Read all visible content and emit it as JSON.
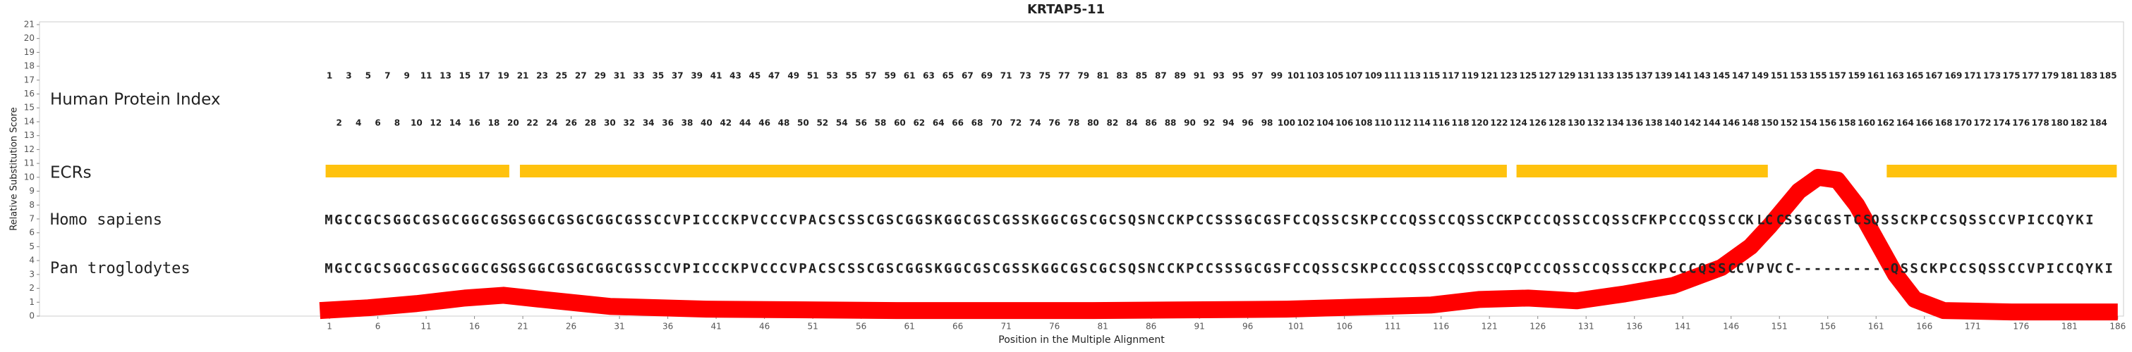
{
  "chart_data": {
    "type": "alignment",
    "title": "KRTAP5-11",
    "ylabel": "Relative Substitution Score",
    "xlabel": "Position in the Multiple Alignment",
    "xlim": [
      -29,
      186.6
    ],
    "ylim": [
      0,
      21.2
    ],
    "yticks": [
      0,
      1,
      2,
      3,
      4,
      5,
      6,
      7,
      8,
      9,
      10,
      11,
      12,
      13,
      14,
      15,
      16,
      17,
      18,
      19,
      20,
      21
    ],
    "xticks": [
      1,
      6,
      11,
      16,
      21,
      26,
      31,
      36,
      41,
      46,
      51,
      56,
      61,
      66,
      71,
      76,
      81,
      86,
      91,
      96,
      101,
      106,
      111,
      116,
      121,
      126,
      131,
      136,
      141,
      146,
      151,
      156,
      161,
      166,
      171,
      176,
      181,
      186
    ],
    "index_label": "Human Protein Index",
    "index": [
      1,
      2,
      3,
      4,
      5,
      6,
      7,
      8,
      9,
      10,
      11,
      12,
      13,
      14,
      15,
      16,
      17,
      18,
      19,
      20,
      21,
      22,
      23,
      24,
      25,
      26,
      27,
      28,
      29,
      30,
      31,
      32,
      33,
      34,
      35,
      36,
      37,
      38,
      39,
      40,
      41,
      42,
      43,
      44,
      45,
      46,
      47,
      48,
      49,
      50,
      51,
      52,
      53,
      54,
      55,
      56,
      57,
      58,
      59,
      60,
      61,
      62,
      63,
      64,
      65,
      66,
      67,
      68,
      69,
      70,
      71,
      72,
      73,
      74,
      75,
      76,
      77,
      78,
      79,
      80,
      81,
      82,
      83,
      84,
      85,
      86,
      87,
      88,
      89,
      90,
      91,
      92,
      93,
      94,
      95,
      96,
      97,
      98,
      99,
      100,
      101,
      102,
      103,
      104,
      105,
      106,
      107,
      108,
      109,
      110,
      111,
      112,
      113,
      114,
      115,
      116,
      117,
      118,
      119,
      120,
      121,
      122,
      123,
      124,
      125,
      126,
      127,
      128,
      129,
      130,
      131,
      132,
      133,
      134,
      135,
      136,
      137,
      138,
      139,
      140,
      141,
      142,
      143,
      144,
      145,
      146,
      147,
      148,
      149,
      150,
      151,
      152,
      153,
      154,
      155,
      156,
      157,
      158,
      159,
      160,
      161,
      162,
      163,
      164,
      165,
      166,
      167,
      168,
      169,
      170,
      171,
      172,
      173,
      174,
      175,
      176,
      177,
      178,
      179,
      180,
      181,
      182,
      183,
      184,
      185
    ],
    "ecr_label": "ECRs",
    "ecr_color": "#ffc20e",
    "ecrs": [
      [
        0.6,
        19.6
      ],
      [
        20.7,
        122.8
      ],
      [
        123.8,
        149.8
      ],
      [
        162.1,
        185.9
      ]
    ],
    "rows": [
      {
        "name": "Homo sapiens",
        "segments": [
          {
            "text": "MGCCGCSGGCGSGCGGCGS",
            "color": "#1f3c99"
          },
          {
            "text": "G",
            "color": "#8c8c8c"
          },
          {
            "text": "SGGCGSGCGGCGSSCCVPICCCKPVCCCVPACSCSSCGSCGGSKGGCGSCGSSKGGCGSCGCSQSNCCKPCCSSSGCGSFCCQSSCSKPCCCQSSCCQSSCC",
            "color": "#1f3c99"
          },
          {
            "text": "K",
            "color": "#6a9a9a"
          },
          {
            "text": "PCCCQSSCCQSSC",
            "color": "#1f3c99"
          },
          {
            "text": "F",
            "color": "#7fbf7f"
          },
          {
            "text": "KPCCCQSSCC",
            "color": "#1f3c99"
          },
          {
            "text": "KL",
            "color": "#7fbf7f"
          },
          {
            "text": "CC",
            "color": "#1f3c99"
          },
          {
            "text": "SSGCGSTCS",
            "color": "#7fbf7f"
          },
          {
            "text": "QSSCKPCCSQSSCCVPICCQYKI",
            "color": "#1f3c99"
          }
        ]
      },
      {
        "name": "Pan troglodytes",
        "segments": [
          {
            "text": "MGCCGCSGGCGSGCGGCGS",
            "color": "#1f3c99"
          },
          {
            "text": "G",
            "color": "#8c8c8c"
          },
          {
            "text": "SGGCGSGCGGCGSSCCVPICCCKPVCCCVPACSCSSCGSCGGSKGGCGSCGSSKGGCGSCGCSQSNCCKPCCSSSGCGSFCCQSSCSKPCCCQSSCCQSSCC",
            "color": "#1f3c99"
          },
          {
            "text": "Q",
            "color": "#6a9a9a"
          },
          {
            "text": "PCCCQSSCCQSSC",
            "color": "#1f3c99"
          },
          {
            "text": "C",
            "color": "#8c8c8c"
          },
          {
            "text": "KPCCCQSSC",
            "color": "#1f3c99"
          },
          {
            "text": "CVPV",
            "color": "#7fbf7f"
          },
          {
            "text": "CC",
            "color": "#1f3c99"
          },
          {
            "text": "----------",
            "color": "#7fbf7f"
          },
          {
            "text": "QSSCKPCCSQSSCCVPICCQYKI",
            "color": "#1f3c99"
          }
        ]
      }
    ],
    "series": [
      {
        "name": "Relative Substitution Score",
        "color": "#ff0000",
        "x": [
          0,
          5,
          10,
          15,
          19,
          23,
          30,
          40,
          60,
          80,
          100,
          115,
          120,
          125,
          130,
          135,
          140,
          145,
          148,
          150,
          153,
          155,
          157,
          159,
          161,
          163,
          165,
          168,
          175,
          186
        ],
        "values": [
          0.4,
          0.6,
          0.9,
          1.3,
          1.5,
          1.2,
          0.7,
          0.5,
          0.4,
          0.4,
          0.5,
          0.8,
          1.2,
          1.3,
          1.1,
          1.6,
          2.2,
          3.5,
          5,
          6.5,
          9,
          10,
          9.8,
          8,
          5.5,
          3,
          1.2,
          0.4,
          0.3,
          0.3
        ]
      }
    ]
  }
}
